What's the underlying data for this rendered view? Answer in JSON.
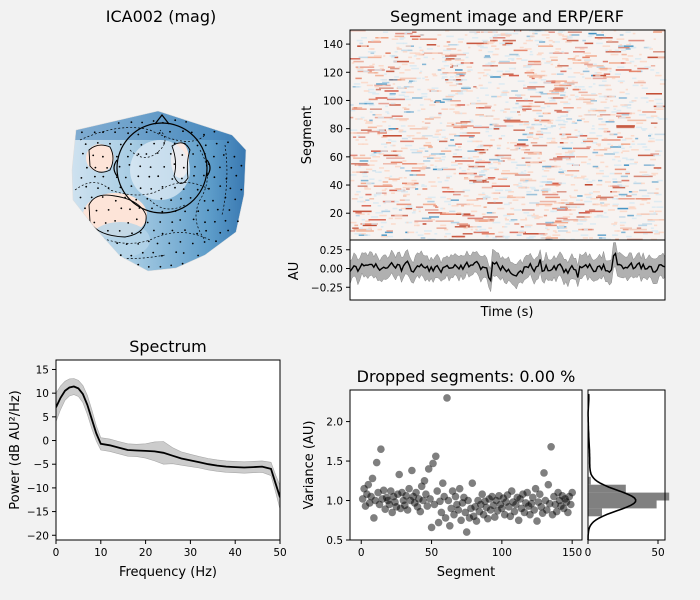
{
  "chart_data": [
    {
      "type": "topomap",
      "title": "ICA002 (mag)",
      "colormap": "RdBu_r"
    },
    {
      "type": "heatmap",
      "title": "Segment image and ERP/ERF",
      "ylabel": "Segment",
      "yticks": [
        20,
        40,
        60,
        80,
        100,
        120,
        140
      ],
      "ylim": [
        1,
        150
      ],
      "rows": 150
    },
    {
      "type": "line",
      "ylabel": "AU",
      "xlabel": "Time (s)",
      "yticks": [
        0.25,
        0.0,
        -0.25
      ],
      "ytick_labels": [
        "0.25",
        "0.00",
        "−0.25"
      ],
      "ylim": [
        -0.42,
        0.38
      ]
    },
    {
      "type": "line",
      "title": "Spectrum",
      "xlabel": "Frequency (Hz)",
      "ylabel": "Power (dB AU²/Hz)",
      "xlim": [
        0,
        50
      ],
      "ylim": [
        -21,
        17
      ],
      "xticks": [
        0,
        10,
        20,
        30,
        40,
        50
      ],
      "yticks": [
        15,
        10,
        5,
        0,
        -5,
        -10,
        -15,
        -20
      ],
      "x": [
        0,
        1,
        2,
        3,
        4,
        5,
        6,
        7,
        8,
        9,
        10,
        12,
        14,
        16,
        18,
        20,
        22,
        24,
        26,
        28,
        30,
        32,
        34,
        36,
        38,
        40,
        42,
        44,
        46,
        48,
        49,
        50
      ],
      "values": [
        7,
        9,
        10.5,
        11.2,
        11.4,
        11,
        9.8,
        7.5,
        4.5,
        1.5,
        -0.7,
        -1,
        -1.5,
        -2,
        -2.1,
        -2.2,
        -2.3,
        -2.6,
        -3.2,
        -3.8,
        -4.2,
        -4.6,
        -5,
        -5.3,
        -5.5,
        -5.6,
        -5.7,
        -5.6,
        -5.5,
        -6,
        -9,
        -12
      ],
      "band_half_width": [
        3,
        2.5,
        2,
        1.8,
        1.7,
        1.7,
        1.8,
        2,
        2,
        1.6,
        1.3,
        1.3,
        1.3,
        1.3,
        1.3,
        1.5,
        2,
        2.4,
        1.7,
        1.4,
        1.3,
        1.2,
        1.2,
        1.2,
        1.2,
        1.2,
        1.2,
        1.2,
        1.2,
        1.4,
        1.8,
        2.5
      ]
    },
    {
      "type": "scatter",
      "title": "Dropped segments: 0.00 %",
      "xlabel": "Segment",
      "ylabel": "Variance (AU)",
      "xlim": [
        -8,
        157
      ],
      "ylim": [
        0.5,
        2.4
      ],
      "xticks": [
        0,
        50,
        100,
        150
      ],
      "yticks": [
        0.5,
        1.0,
        1.5,
        2.0
      ],
      "ytick_labels": [
        "0.5",
        "1.0",
        "1.5",
        "2.0"
      ],
      "points": [
        [
          1,
          1.02
        ],
        [
          2,
          1.15
        ],
        [
          3,
          0.93
        ],
        [
          4,
          1.08
        ],
        [
          5,
          1.2
        ],
        [
          6,
          0.97
        ],
        [
          7,
          1.05
        ],
        [
          8,
          1.28
        ],
        [
          9,
          0.78
        ],
        [
          10,
          1.0
        ],
        [
          11,
          1.48
        ],
        [
          12,
          1.1
        ],
        [
          13,
          0.95
        ],
        [
          14,
          1.65
        ],
        [
          15,
          1.02
        ],
        [
          16,
          1.13
        ],
        [
          17,
          0.89
        ],
        [
          18,
          1.04
        ],
        [
          19,
          1.0
        ],
        [
          20,
          0.95
        ],
        [
          21,
          1.12
        ],
        [
          22,
          0.85
        ],
        [
          23,
          1.05
        ],
        [
          24,
          0.98
        ],
        [
          25,
          0.92
        ],
        [
          26,
          1.08
        ],
        [
          27,
          1.33
        ],
        [
          28,
          0.9
        ],
        [
          29,
          1.1
        ],
        [
          30,
          1.0
        ],
        [
          31,
          0.94
        ],
        [
          32,
          1.06
        ],
        [
          33,
          0.88
        ],
        [
          34,
          1.15
        ],
        [
          35,
          1.0
        ],
        [
          36,
          1.38
        ],
        [
          37,
          1.05
        ],
        [
          38,
          0.97
        ],
        [
          39,
          1.1
        ],
        [
          40,
          0.92
        ],
        [
          41,
          1.02
        ],
        [
          42,
          0.86
        ],
        [
          43,
          1.18
        ],
        [
          44,
          1.0
        ],
        [
          45,
          1.25
        ],
        [
          46,
          1.08
        ],
        [
          47,
          0.93
        ],
        [
          48,
          1.4
        ],
        [
          49,
          1.02
        ],
        [
          50,
          0.66
        ],
        [
          51,
          1.47
        ],
        [
          52,
          0.95
        ],
        [
          53,
          1.56
        ],
        [
          54,
          1.12
        ],
        [
          55,
          0.72
        ],
        [
          56,
          0.99
        ],
        [
          57,
          0.85
        ],
        [
          58,
          1.22
        ],
        [
          59,
          1.05
        ],
        [
          60,
          0.78
        ],
        [
          61,
          2.3
        ],
        [
          62,
          1.0
        ],
        [
          63,
          0.68
        ],
        [
          64,
          0.9
        ],
        [
          65,
          1.12
        ],
        [
          66,
          0.82
        ],
        [
          67,
          1.05
        ],
        [
          68,
          0.95
        ],
        [
          69,
          0.88
        ],
        [
          70,
          1.15
        ],
        [
          71,
          0.75
        ],
        [
          72,
          0.97
        ],
        [
          73,
          1.04
        ],
        [
          74,
          0.85
        ],
        [
          75,
          0.6
        ],
        [
          76,
          1.0
        ],
        [
          77,
          0.78
        ],
        [
          78,
          0.9
        ],
        [
          79,
          1.22
        ],
        [
          80,
          0.8
        ],
        [
          81,
          0.92
        ],
        [
          82,
          0.74
        ],
        [
          83,
          1.0
        ],
        [
          84,
          0.86
        ],
        [
          85,
          0.95
        ],
        [
          86,
          1.08
        ],
        [
          87,
          0.82
        ],
        [
          88,
          0.99
        ],
        [
          89,
          0.91
        ],
        [
          90,
          0.77
        ],
        [
          91,
          1.02
        ],
        [
          92,
          0.88
        ],
        [
          93,
          1.05
        ],
        [
          94,
          0.94
        ],
        [
          95,
          0.79
        ],
        [
          96,
          1.0
        ],
        [
          97,
          0.87
        ],
        [
          98,
          1.06
        ],
        [
          99,
          0.95
        ],
        [
          100,
          0.9
        ],
        [
          101,
          1.03
        ],
        [
          102,
          0.82
        ],
        [
          103,
          0.98
        ],
        [
          104,
          1.07
        ],
        [
          105,
          0.92
        ],
        [
          106,
          0.8
        ],
        [
          107,
          1.12
        ],
        [
          108,
          0.98
        ],
        [
          109,
          0.86
        ],
        [
          110,
          0.95
        ],
        [
          111,
          1.04
        ],
        [
          112,
          0.75
        ],
        [
          113,
          1.02
        ],
        [
          114,
          0.9
        ],
        [
          115,
          1.08
        ],
        [
          116,
          0.85
        ],
        [
          117,
          0.97
        ],
        [
          118,
          1.1
        ],
        [
          119,
          0.93
        ],
        [
          120,
          0.82
        ],
        [
          121,
          0.96
        ],
        [
          122,
          1.04
        ],
        [
          123,
          0.88
        ],
        [
          124,
          1.15
        ],
        [
          125,
          0.74
        ],
        [
          126,
          0.98
        ],
        [
          127,
          1.08
        ],
        [
          128,
          0.92
        ],
        [
          129,
          0.84
        ],
        [
          130,
          1.35
        ],
        [
          131,
          1.0
        ],
        [
          132,
          0.88
        ],
        [
          133,
          1.2
        ],
        [
          134,
          0.96
        ],
        [
          135,
          1.68
        ],
        [
          136,
          0.82
        ],
        [
          137,
          1.05
        ],
        [
          138,
          0.95
        ],
        [
          139,
          0.86
        ],
        [
          140,
          1.1
        ],
        [
          141,
          1.0
        ],
        [
          142,
          0.93
        ],
        [
          143,
          1.06
        ],
        [
          144,
          0.9
        ],
        [
          145,
          1.02
        ],
        [
          146,
          0.98
        ],
        [
          147,
          0.85
        ],
        [
          148,
          1.05
        ],
        [
          149,
          0.95
        ],
        [
          150,
          1.1
        ]
      ]
    },
    {
      "type": "histogram",
      "xlim": [
        0,
        55
      ],
      "xticks": [
        0,
        50
      ],
      "bins": [
        {
          "lo": 0.8,
          "hi": 0.9,
          "count": 10
        },
        {
          "lo": 0.9,
          "hi": 1.0,
          "count": 49
        },
        {
          "lo": 1.0,
          "hi": 1.1,
          "count": 58
        },
        {
          "lo": 1.1,
          "hi": 1.2,
          "count": 27
        },
        {
          "lo": 1.2,
          "hi": 1.3,
          "count": 2
        }
      ]
    }
  ]
}
